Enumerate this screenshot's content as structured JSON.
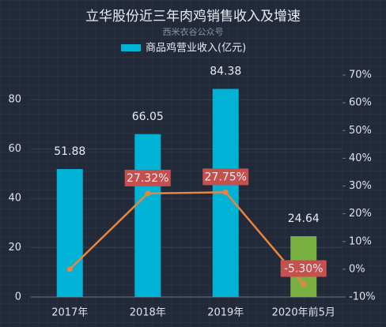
{
  "chart_data": {
    "type": "bar-line",
    "title": "立华股份近三年肉鸡销售收入及增速",
    "subtitle": "西米衣谷公众号",
    "categories": [
      "2017年",
      "2018年",
      "2019年",
      "2020年前5月"
    ],
    "series": [
      {
        "name": "商品鸡营业收入(亿元)",
        "type": "bar",
        "color": "#00b2d6",
        "colors": [
          "#00b2d6",
          "#00b2d6",
          "#00b2d6",
          "#79b041"
        ],
        "values": [
          51.88,
          66.05,
          84.38,
          24.64
        ]
      },
      {
        "type": "line",
        "axis": "y2",
        "color": "#e9853c",
        "label_color": "#c6504e",
        "values": [
          0,
          27.32,
          27.75,
          -5.3
        ],
        "value_labels": [
          null,
          "27.32%",
          "27.75%",
          "-5.30%"
        ]
      }
    ],
    "ylim": [
      0,
      90
    ],
    "yticks": [
      0,
      20,
      40,
      60,
      80
    ],
    "y2lim": [
      -10,
      70
    ],
    "y2ticks": [
      {
        "value": -10,
        "label": "-10%"
      },
      {
        "value": 0,
        "label": "0%"
      },
      {
        "value": 10,
        "label": "10%"
      },
      {
        "value": 20,
        "label": "20%"
      },
      {
        "value": 30,
        "label": "30%"
      },
      {
        "value": 40,
        "label": "40%"
      },
      {
        "value": 50,
        "label": "50%"
      },
      {
        "value": 60,
        "label": "60%"
      },
      {
        "value": 70,
        "label": "70%"
      }
    ],
    "grid": true
  }
}
